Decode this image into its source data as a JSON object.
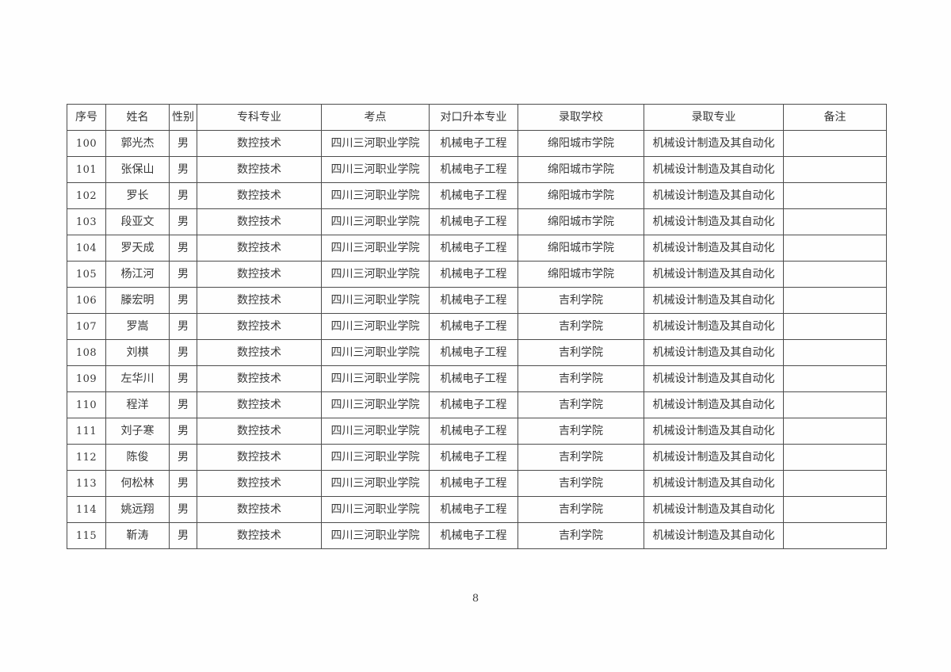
{
  "page": {
    "number": "8"
  },
  "colors": {
    "table_border": "#4d4d4d",
    "text": "#383838",
    "background": "#fdfdfd"
  },
  "table": {
    "columns": [
      {
        "key": "index",
        "label": "序号"
      },
      {
        "key": "name",
        "label": "姓名"
      },
      {
        "key": "gender",
        "label": "性别"
      },
      {
        "key": "college-major",
        "label": "专科专业"
      },
      {
        "key": "exam-site",
        "label": "考点"
      },
      {
        "key": "target-major",
        "label": "对口升本专业"
      },
      {
        "key": "admit-school",
        "label": "录取学校"
      },
      {
        "key": "admit-major",
        "label": "录取专业"
      },
      {
        "key": "remarks",
        "label": "备注"
      }
    ],
    "rows": [
      [
        "100",
        "郭光杰",
        "男",
        "数控技术",
        "四川三河职业学院",
        "机械电子工程",
        "绵阳城市学院",
        "机械设计制造及其自动化",
        ""
      ],
      [
        "101",
        "张保山",
        "男",
        "数控技术",
        "四川三河职业学院",
        "机械电子工程",
        "绵阳城市学院",
        "机械设计制造及其自动化",
        ""
      ],
      [
        "102",
        "罗长",
        "男",
        "数控技术",
        "四川三河职业学院",
        "机械电子工程",
        "绵阳城市学院",
        "机械设计制造及其自动化",
        ""
      ],
      [
        "103",
        "段亚文",
        "男",
        "数控技术",
        "四川三河职业学院",
        "机械电子工程",
        "绵阳城市学院",
        "机械设计制造及其自动化",
        ""
      ],
      [
        "104",
        "罗天成",
        "男",
        "数控技术",
        "四川三河职业学院",
        "机械电子工程",
        "绵阳城市学院",
        "机械设计制造及其自动化",
        ""
      ],
      [
        "105",
        "杨江河",
        "男",
        "数控技术",
        "四川三河职业学院",
        "机械电子工程",
        "绵阳城市学院",
        "机械设计制造及其自动化",
        ""
      ],
      [
        "106",
        "滕宏明",
        "男",
        "数控技术",
        "四川三河职业学院",
        "机械电子工程",
        "吉利学院",
        "机械设计制造及其自动化",
        ""
      ],
      [
        "107",
        "罗嵩",
        "男",
        "数控技术",
        "四川三河职业学院",
        "机械电子工程",
        "吉利学院",
        "机械设计制造及其自动化",
        ""
      ],
      [
        "108",
        "刘棋",
        "男",
        "数控技术",
        "四川三河职业学院",
        "机械电子工程",
        "吉利学院",
        "机械设计制造及其自动化",
        ""
      ],
      [
        "109",
        "左华川",
        "男",
        "数控技术",
        "四川三河职业学院",
        "机械电子工程",
        "吉利学院",
        "机械设计制造及其自动化",
        ""
      ],
      [
        "110",
        "程洋",
        "男",
        "数控技术",
        "四川三河职业学院",
        "机械电子工程",
        "吉利学院",
        "机械设计制造及其自动化",
        ""
      ],
      [
        "111",
        "刘子寒",
        "男",
        "数控技术",
        "四川三河职业学院",
        "机械电子工程",
        "吉利学院",
        "机械设计制造及其自动化",
        ""
      ],
      [
        "112",
        "陈俊",
        "男",
        "数控技术",
        "四川三河职业学院",
        "机械电子工程",
        "吉利学院",
        "机械设计制造及其自动化",
        ""
      ],
      [
        "113",
        "何松林",
        "男",
        "数控技术",
        "四川三河职业学院",
        "机械电子工程",
        "吉利学院",
        "机械设计制造及其自动化",
        ""
      ],
      [
        "114",
        "姚远翔",
        "男",
        "数控技术",
        "四川三河职业学院",
        "机械电子工程",
        "吉利学院",
        "机械设计制造及其自动化",
        ""
      ],
      [
        "115",
        "靳涛",
        "男",
        "数控技术",
        "四川三河职业学院",
        "机械电子工程",
        "吉利学院",
        "机械设计制造及其自动化",
        ""
      ]
    ]
  }
}
